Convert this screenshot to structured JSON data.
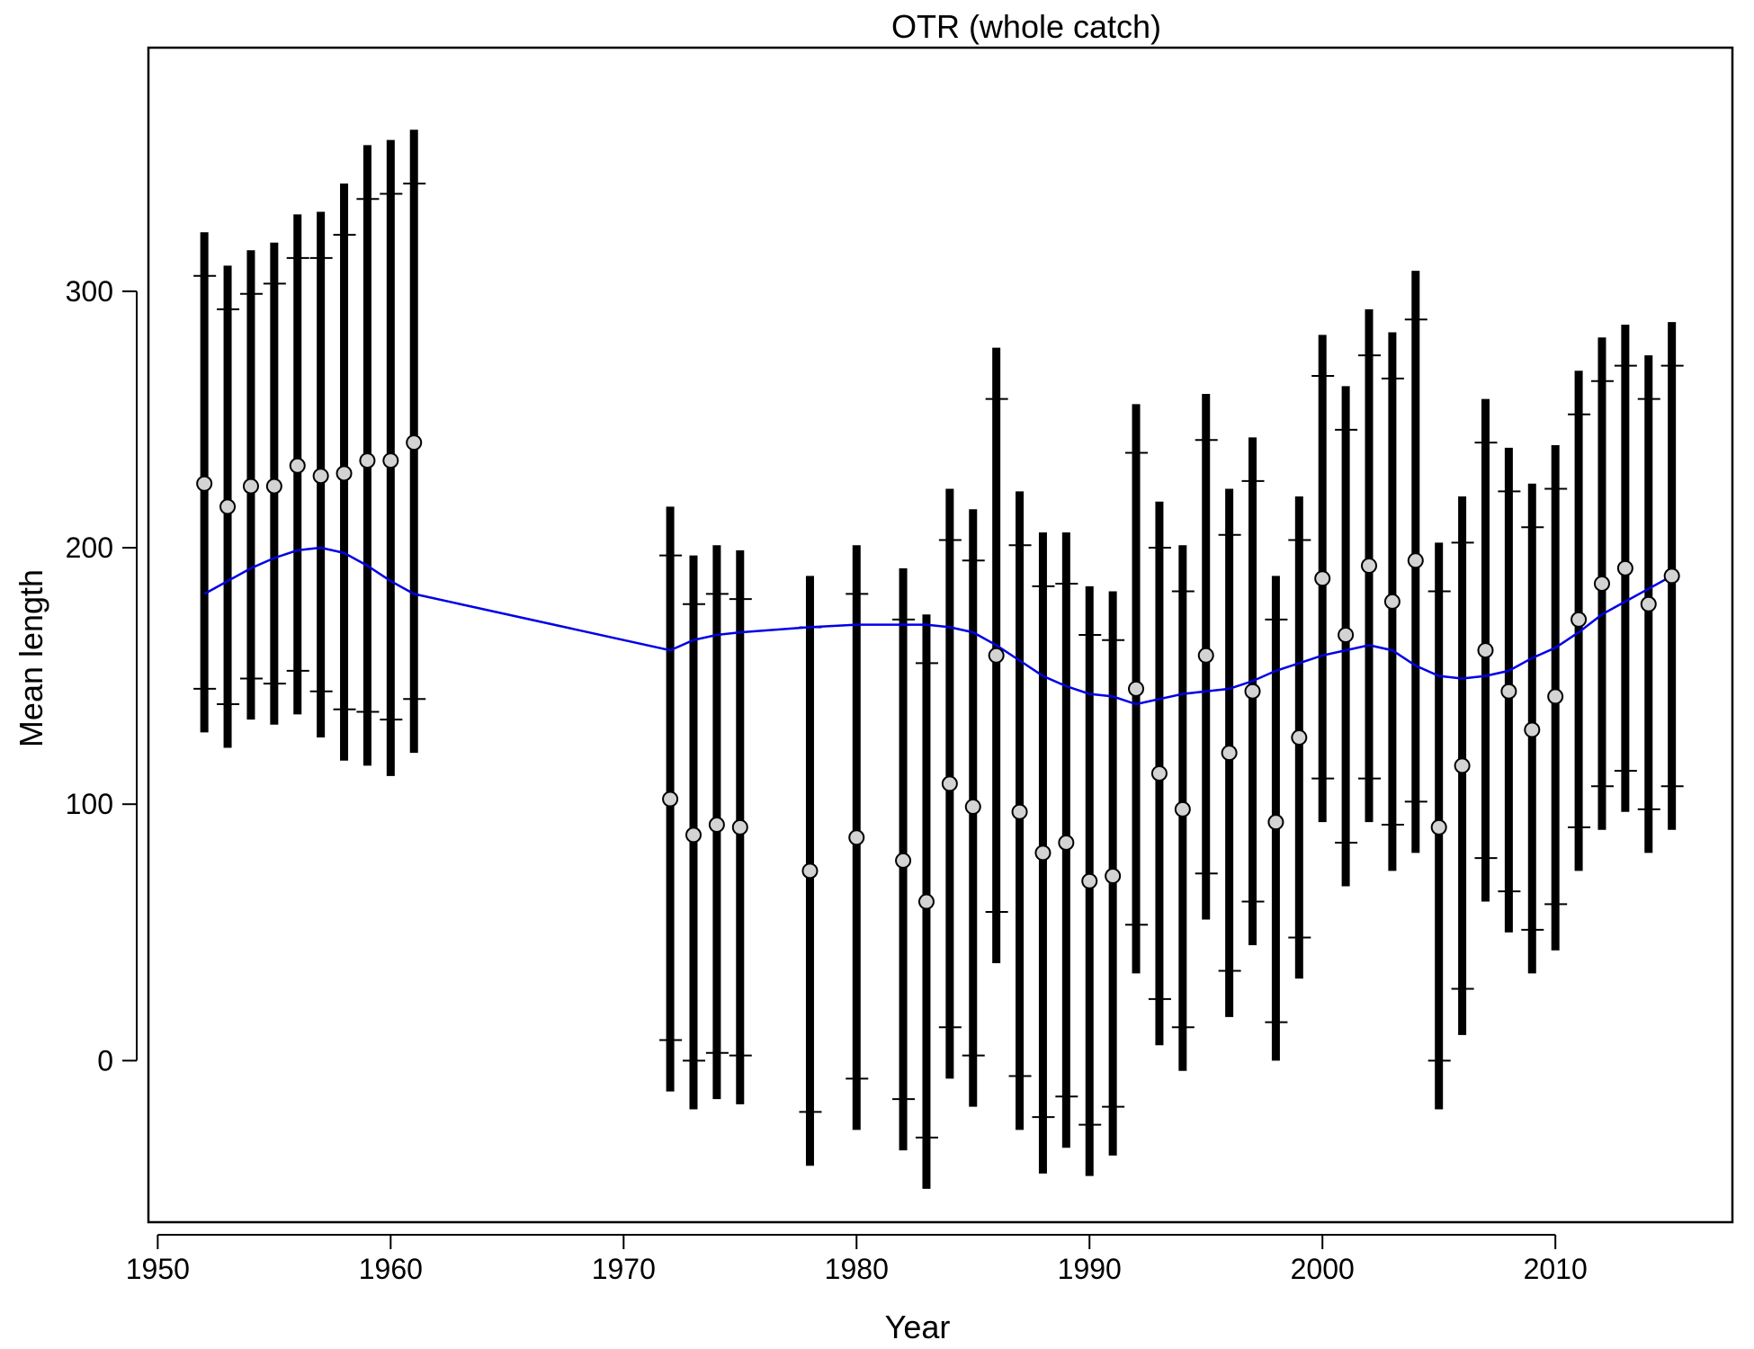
{
  "chart_data": {
    "type": "scatter",
    "title": "OTR (whole catch)",
    "xlabel": "Year",
    "ylabel": "Mean length",
    "xlim": [
      1949.6,
      2017.6
    ],
    "ylim": [
      -63,
      395
    ],
    "x_ticks": [
      1950,
      1960,
      1970,
      1980,
      1990,
      2000,
      2010
    ],
    "y_ticks": [
      0,
      100,
      200,
      300
    ],
    "grid": false,
    "colors": {
      "line": "#0000e6",
      "point_fill": "#d3d3d3",
      "bar": "#000000"
    },
    "observed": [
      {
        "year": 1952,
        "mean": 225,
        "outer": [
          128,
          323
        ],
        "inner": [
          145,
          306
        ]
      },
      {
        "year": 1953,
        "mean": 216,
        "outer": [
          122,
          310
        ],
        "inner": [
          139,
          293
        ]
      },
      {
        "year": 1954,
        "mean": 224,
        "outer": [
          133,
          316
        ],
        "inner": [
          149,
          299
        ]
      },
      {
        "year": 1955,
        "mean": 224,
        "outer": [
          131,
          319
        ],
        "inner": [
          147,
          303
        ]
      },
      {
        "year": 1956,
        "mean": 232,
        "outer": [
          135,
          330
        ],
        "inner": [
          152,
          313
        ]
      },
      {
        "year": 1957,
        "mean": 228,
        "outer": [
          126,
          331
        ],
        "inner": [
          144,
          313
        ]
      },
      {
        "year": 1958,
        "mean": 229,
        "outer": [
          117,
          342
        ],
        "inner": [
          137,
          322
        ]
      },
      {
        "year": 1959,
        "mean": 234,
        "outer": [
          115,
          357
        ],
        "inner": [
          136,
          336
        ]
      },
      {
        "year": 1960,
        "mean": 234,
        "outer": [
          111,
          359
        ],
        "inner": [
          133,
          338
        ]
      },
      {
        "year": 1961,
        "mean": 241,
        "outer": [
          120,
          363
        ],
        "inner": [
          141,
          342
        ]
      },
      {
        "year": 1972,
        "mean": 102,
        "outer": [
          -12,
          216
        ],
        "inner": [
          8,
          197
        ]
      },
      {
        "year": 1973,
        "mean": 88,
        "outer": [
          -19,
          197
        ],
        "inner": [
          0,
          178
        ]
      },
      {
        "year": 1974,
        "mean": 92,
        "outer": [
          -15,
          201
        ],
        "inner": [
          3,
          182
        ]
      },
      {
        "year": 1975,
        "mean": 91,
        "outer": [
          -17,
          199
        ],
        "inner": [
          2,
          180
        ]
      },
      {
        "year": 1978,
        "mean": 74,
        "outer": [
          -41,
          189
        ],
        "inner": [
          -20,
          169
        ]
      },
      {
        "year": 1980,
        "mean": 87,
        "outer": [
          -27,
          201
        ],
        "inner": [
          -7,
          182
        ]
      },
      {
        "year": 1982,
        "mean": 78,
        "outer": [
          -35,
          192
        ],
        "inner": [
          -15,
          172
        ]
      },
      {
        "year": 1983,
        "mean": 62,
        "outer": [
          -50,
          174
        ],
        "inner": [
          -30,
          155
        ]
      },
      {
        "year": 1984,
        "mean": 108,
        "outer": [
          -7,
          223
        ],
        "inner": [
          13,
          203
        ]
      },
      {
        "year": 1985,
        "mean": 99,
        "outer": [
          -18,
          215
        ],
        "inner": [
          2,
          195
        ]
      },
      {
        "year": 1986,
        "mean": 158,
        "outer": [
          38,
          278
        ],
        "inner": [
          58,
          258
        ]
      },
      {
        "year": 1987,
        "mean": 97,
        "outer": [
          -27,
          222
        ],
        "inner": [
          -6,
          201
        ]
      },
      {
        "year": 1988,
        "mean": 81,
        "outer": [
          -44,
          206
        ],
        "inner": [
          -22,
          185
        ]
      },
      {
        "year": 1989,
        "mean": 85,
        "outer": [
          -34,
          206
        ],
        "inner": [
          -14,
          186
        ]
      },
      {
        "year": 1990,
        "mean": 70,
        "outer": [
          -45,
          185
        ],
        "inner": [
          -25,
          166
        ]
      },
      {
        "year": 1991,
        "mean": 72,
        "outer": [
          -37,
          183
        ],
        "inner": [
          -18,
          164
        ]
      },
      {
        "year": 1992,
        "mean": 145,
        "outer": [
          34,
          256
        ],
        "inner": [
          53,
          237
        ]
      },
      {
        "year": 1993,
        "mean": 112,
        "outer": [
          6,
          218
        ],
        "inner": [
          24,
          200
        ]
      },
      {
        "year": 1994,
        "mean": 98,
        "outer": [
          -4,
          201
        ],
        "inner": [
          13,
          183
        ]
      },
      {
        "year": 1995,
        "mean": 158,
        "outer": [
          55,
          260
        ],
        "inner": [
          73,
          242
        ]
      },
      {
        "year": 1996,
        "mean": 120,
        "outer": [
          17,
          223
        ],
        "inner": [
          35,
          205
        ]
      },
      {
        "year": 1997,
        "mean": 144,
        "outer": [
          45,
          243
        ],
        "inner": [
          62,
          226
        ]
      },
      {
        "year": 1998,
        "mean": 93,
        "outer": [
          0,
          189
        ],
        "inner": [
          15,
          172
        ]
      },
      {
        "year": 1999,
        "mean": 126,
        "outer": [
          32,
          220
        ],
        "inner": [
          48,
          203
        ]
      },
      {
        "year": 2000,
        "mean": 188,
        "outer": [
          93,
          283
        ],
        "inner": [
          110,
          267
        ]
      },
      {
        "year": 2001,
        "mean": 166,
        "outer": [
          68,
          263
        ],
        "inner": [
          85,
          246
        ]
      },
      {
        "year": 2002,
        "mean": 193,
        "outer": [
          93,
          293
        ],
        "inner": [
          110,
          275
        ]
      },
      {
        "year": 2003,
        "mean": 179,
        "outer": [
          74,
          284
        ],
        "inner": [
          92,
          266
        ]
      },
      {
        "year": 2004,
        "mean": 195,
        "outer": [
          81,
          308
        ],
        "inner": [
          101,
          289
        ]
      },
      {
        "year": 2005,
        "mean": 91,
        "outer": [
          -19,
          202
        ],
        "inner": [
          0,
          183
        ]
      },
      {
        "year": 2006,
        "mean": 115,
        "outer": [
          10,
          220
        ],
        "inner": [
          28,
          202
        ]
      },
      {
        "year": 2007,
        "mean": 160,
        "outer": [
          62,
          258
        ],
        "inner": [
          79,
          241
        ]
      },
      {
        "year": 2008,
        "mean": 144,
        "outer": [
          50,
          239
        ],
        "inner": [
          66,
          222
        ]
      },
      {
        "year": 2009,
        "mean": 129,
        "outer": [
          34,
          225
        ],
        "inner": [
          51,
          208
        ]
      },
      {
        "year": 2010,
        "mean": 142,
        "outer": [
          43,
          240
        ],
        "inner": [
          61,
          223
        ]
      },
      {
        "year": 2011,
        "mean": 172,
        "outer": [
          74,
          269
        ],
        "inner": [
          91,
          252
        ]
      },
      {
        "year": 2012,
        "mean": 186,
        "outer": [
          90,
          282
        ],
        "inner": [
          107,
          265
        ]
      },
      {
        "year": 2013,
        "mean": 192,
        "outer": [
          97,
          287
        ],
        "inner": [
          113,
          271
        ]
      },
      {
        "year": 2014,
        "mean": 178,
        "outer": [
          81,
          275
        ],
        "inner": [
          98,
          258
        ]
      },
      {
        "year": 2015,
        "mean": 189,
        "outer": [
          90,
          288
        ],
        "inner": [
          107,
          271
        ]
      }
    ],
    "expected_line": {
      "x": [
        1952,
        1953,
        1954,
        1955,
        1956,
        1957,
        1958,
        1959,
        1960,
        1961,
        1972,
        1973,
        1974,
        1975,
        1978,
        1980,
        1982,
        1983,
        1984,
        1985,
        1986,
        1987,
        1988,
        1989,
        1990,
        1991,
        1992,
        1993,
        1994,
        1995,
        1996,
        1997,
        1998,
        1999,
        2000,
        2001,
        2002,
        2003,
        2004,
        2005,
        2006,
        2007,
        2008,
        2009,
        2010,
        2011,
        2012,
        2013,
        2014,
        2015
      ],
      "y": [
        182,
        187,
        192,
        196,
        199,
        200,
        198,
        193,
        187,
        182,
        160,
        164,
        166,
        167,
        169,
        170,
        170,
        170,
        169,
        167,
        162,
        156,
        150,
        146,
        143,
        142,
        139,
        141,
        143,
        144,
        145,
        148,
        152,
        155,
        158,
        160,
        162,
        160,
        154,
        150,
        149,
        150,
        152,
        157,
        161,
        167,
        174,
        179,
        184,
        189
      ]
    }
  }
}
